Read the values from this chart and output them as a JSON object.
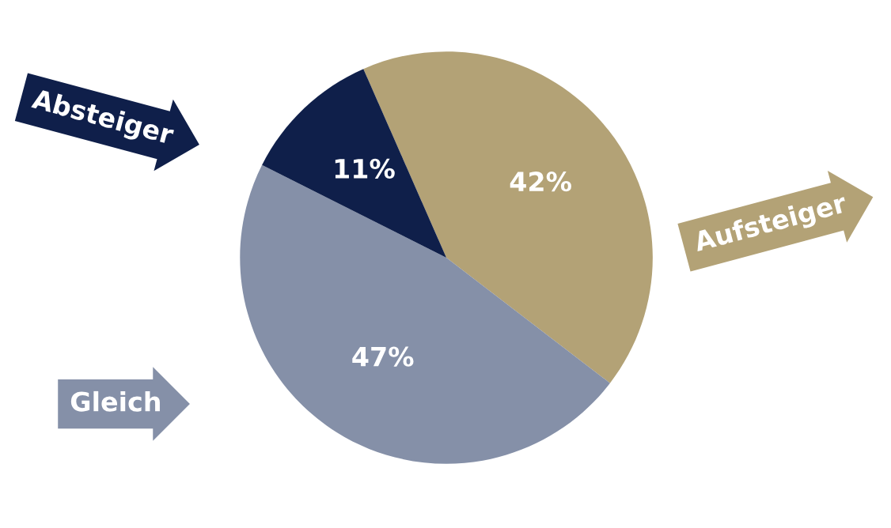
{
  "chart_data": {
    "type": "pie",
    "categories": [
      "Aufsteiger",
      "Gleich",
      "Absteiger"
    ],
    "values": [
      42,
      47,
      11
    ],
    "colors": [
      "#b3a276",
      "#8590a8",
      "#0f1f4a"
    ],
    "value_labels": [
      "42%",
      "47%",
      "11%"
    ]
  }
}
